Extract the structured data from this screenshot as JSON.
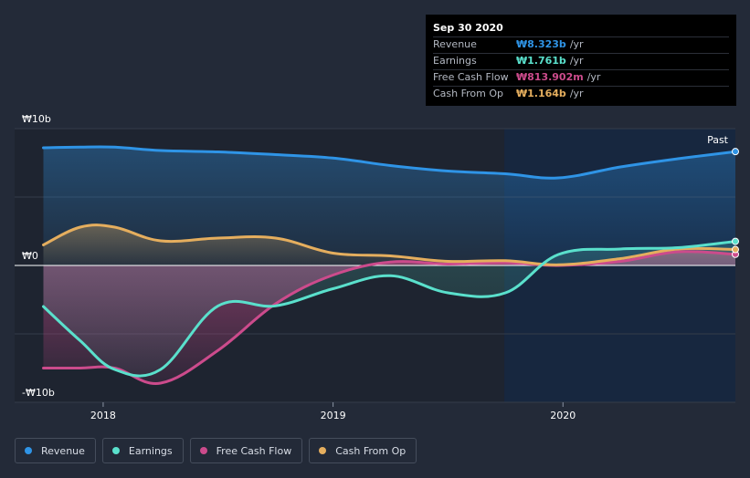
{
  "chart_data": {
    "type": "area",
    "currency_symbol": "₩",
    "y_axis": {
      "unit": "b",
      "ylim": [
        -10,
        10
      ],
      "tick_labels": [
        "₩10b",
        "₩0",
        "-₩10b"
      ]
    },
    "x_axis": {
      "ticks": [
        2018,
        2019,
        2020
      ],
      "tick_labels": [
        "2018",
        "2019",
        "2020"
      ],
      "xlim": [
        2017.74,
        2020.75
      ]
    },
    "forecast_divider_year": 2019.745,
    "past_label": "Past",
    "series": [
      {
        "name": "Revenue",
        "color": "#2f94e6",
        "x": [
          2017.74,
          2017.9,
          2018.05,
          2018.25,
          2018.5,
          2018.75,
          2019.0,
          2019.25,
          2019.5,
          2019.75,
          2019.98,
          2020.25,
          2020.5,
          2020.75
        ],
        "values": [
          8.6,
          8.65,
          8.65,
          8.4,
          8.3,
          8.1,
          7.85,
          7.3,
          6.9,
          6.7,
          6.4,
          7.2,
          7.8,
          8.323
        ]
      },
      {
        "name": "Earnings",
        "color": "#5ae0cc",
        "x": [
          2017.74,
          2017.9,
          2018.05,
          2018.25,
          2018.5,
          2018.75,
          2019.0,
          2019.25,
          2019.5,
          2019.75,
          2019.98,
          2020.25,
          2020.5,
          2020.75
        ],
        "values": [
          -3.0,
          -5.5,
          -7.6,
          -7.6,
          -2.95,
          -2.95,
          -1.7,
          -0.75,
          -2.0,
          -2.0,
          0.8,
          1.2,
          1.3,
          1.761
        ]
      },
      {
        "name": "Free Cash Flow",
        "color": "#cc4b8c",
        "x": [
          2017.74,
          2017.9,
          2018.05,
          2018.25,
          2018.5,
          2018.75,
          2019.0,
          2019.25,
          2019.5,
          2019.75,
          2019.98,
          2020.25,
          2020.5,
          2020.75
        ],
        "values": [
          -7.5,
          -7.5,
          -7.5,
          -8.6,
          -6.2,
          -2.8,
          -0.7,
          0.25,
          0.1,
          0.2,
          0.0,
          0.3,
          1.0,
          0.814
        ]
      },
      {
        "name": "Cash From Op",
        "color": "#e5ae5e",
        "x": [
          2017.74,
          2017.9,
          2018.05,
          2018.25,
          2018.5,
          2018.75,
          2019.0,
          2019.25,
          2019.5,
          2019.75,
          2019.98,
          2020.25,
          2020.5,
          2020.75
        ],
        "values": [
          1.5,
          2.8,
          2.8,
          1.8,
          2.0,
          2.0,
          0.9,
          0.7,
          0.3,
          0.35,
          0.05,
          0.5,
          1.2,
          1.164
        ]
      }
    ]
  },
  "tooltip": {
    "date": "Sep 30 2020",
    "rows": [
      {
        "label": "Revenue",
        "value": "₩8.323b",
        "unit": "/yr",
        "color": "#2f94e6"
      },
      {
        "label": "Earnings",
        "value": "₩1.761b",
        "unit": "/yr",
        "color": "#5ae0cc"
      },
      {
        "label": "Free Cash Flow",
        "value": "₩813.902m",
        "unit": "/yr",
        "color": "#cc4b8c"
      },
      {
        "label": "Cash From Op",
        "value": "₩1.164b",
        "unit": "/yr",
        "color": "#e5ae5e"
      }
    ]
  },
  "legend": [
    {
      "label": "Revenue",
      "color": "#2f94e6"
    },
    {
      "label": "Earnings",
      "color": "#5ae0cc"
    },
    {
      "label": "Free Cash Flow",
      "color": "#cc4b8c"
    },
    {
      "label": "Cash From Op",
      "color": "#e5ae5e"
    }
  ]
}
